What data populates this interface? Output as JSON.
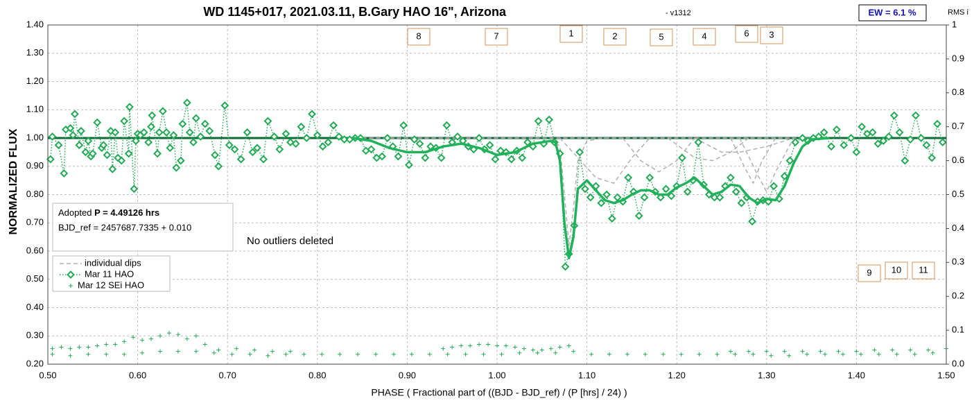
{
  "chart_data": {
    "type": "line",
    "title": "WD 1145+017, 2021.03.11, B.Gary HAO 16\", Arizona",
    "subtitle": "- v1312",
    "ew_label": "EW = 6.1 %",
    "y2_axis_label": "RMS i",
    "y_axis_label": "NORMALIZED FLUX",
    "x_axis_label": "PHASE ( Fractional part of ((BJD - BJD_ref) / (P [hrs] / 24) )",
    "info": {
      "adopted": "Adopted",
      "period": "P = 4.49126 hrs",
      "bjd_ref": "BJD_ref = 2457687.7335 + 0.010"
    },
    "note": "No outliers deleted",
    "dip_labels": [
      "8",
      "7",
      "1",
      "2",
      "5",
      "4",
      "6",
      "3",
      "9",
      "10",
      "11"
    ],
    "grid": true,
    "xlim": [
      0.5,
      1.5
    ],
    "xticks": [
      {
        "value": 0.5,
        "label": "0.50"
      },
      {
        "value": 0.6,
        "label": "0.60"
      },
      {
        "value": 0.7,
        "label": "0.70"
      },
      {
        "value": 0.8,
        "label": "0.80"
      },
      {
        "value": 0.9,
        "label": "0.90"
      },
      {
        "value": 1.0,
        "label": "1.00"
      },
      {
        "value": 1.1,
        "label": "1.10"
      },
      {
        "value": 1.2,
        "label": "1.20"
      },
      {
        "value": 1.3,
        "label": "1.30"
      },
      {
        "value": 1.4,
        "label": "1.40"
      },
      {
        "value": 1.5,
        "label": "1.50"
      }
    ],
    "ylim": [
      0.2,
      1.4
    ],
    "yticks": [
      {
        "value": 0.2,
        "label": "0.20"
      },
      {
        "value": 0.3,
        "label": "0.30"
      },
      {
        "value": 0.4,
        "label": "0.40"
      },
      {
        "value": 0.5,
        "label": "0.50"
      },
      {
        "value": 0.6,
        "label": "0.60"
      },
      {
        "value": 0.7,
        "label": "0.70"
      },
      {
        "value": 0.8,
        "label": "0.80"
      },
      {
        "value": 0.9,
        "label": "0.90"
      },
      {
        "value": 1.0,
        "label": "1.00"
      },
      {
        "value": 1.1,
        "label": "1.10"
      },
      {
        "value": 1.2,
        "label": "1.20"
      },
      {
        "value": 1.3,
        "label": "1.30"
      },
      {
        "value": 1.4,
        "label": "1.40"
      }
    ],
    "y2lim": [
      0,
      1
    ],
    "y2ticks": [
      {
        "value": 0,
        "label": "0.0"
      },
      0.1,
      0.2,
      0.3,
      0.4,
      0.5,
      0.6,
      0.7,
      0.8,
      0.9,
      1
    ],
    "series": [
      {
        "color": "#0b6b32",
        "line": "solid",
        "width": 3,
        "marker": "none",
        "x": [
          0.5,
          1.5
        ],
        "values": [
          1.0,
          1.0
        ]
      },
      {
        "color": "#9a9a9a",
        "line": "dashed",
        "width": 2,
        "marker": "none",
        "x": [
          0.85,
          1.35
        ],
        "values": [
          1.0,
          1.0
        ]
      },
      {
        "name": "individual dips",
        "color": "#b0b0b0",
        "line": "dashed",
        "width": 1.5,
        "marker": "none",
        "x": [
          1.06,
          1.07,
          1.075,
          1.08,
          1.085,
          1.09,
          1.1,
          1.12
        ],
        "values": [
          1.0,
          0.97,
          0.8,
          0.62,
          0.75,
          0.92,
          0.99,
          1.0
        ]
      },
      {
        "color": "#b0b0b0",
        "line": "dashed",
        "width": 1.5,
        "marker": "none",
        "x": [
          1.07,
          1.09,
          1.11,
          1.13,
          1.15,
          1.17
        ],
        "values": [
          1.0,
          0.93,
          0.86,
          0.84,
          0.93,
          1.0
        ]
      },
      {
        "color": "#b0b0b0",
        "line": "dashed",
        "width": 1.5,
        "marker": "none",
        "x": [
          1.14,
          1.16,
          1.18,
          1.2,
          1.22
        ],
        "values": [
          1.0,
          0.92,
          0.88,
          0.92,
          1.0
        ]
      },
      {
        "color": "#b0b0b0",
        "line": "dashed",
        "width": 1.5,
        "marker": "none",
        "x": [
          1.19,
          1.22,
          1.24,
          1.26,
          1.28
        ],
        "values": [
          1.0,
          0.93,
          0.92,
          0.95,
          1.0
        ]
      },
      {
        "color": "#b0b0b0",
        "line": "dashed",
        "width": 1.5,
        "marker": "none",
        "x": [
          1.22,
          1.25,
          1.27,
          1.3,
          1.33
        ],
        "values": [
          1.0,
          0.95,
          0.95,
          0.97,
          1.0
        ]
      },
      {
        "color": "#b0b0b0",
        "line": "dashed",
        "width": 1.5,
        "marker": "none",
        "x": [
          1.26,
          1.275,
          1.285,
          1.295,
          1.31
        ],
        "values": [
          1.0,
          0.9,
          0.84,
          0.92,
          1.0
        ]
      },
      {
        "color": "#b0b0b0",
        "line": "dashed",
        "width": 1.5,
        "marker": "none",
        "x": [
          1.27,
          1.29,
          1.3,
          1.31,
          1.33
        ],
        "values": [
          1.0,
          0.87,
          0.81,
          0.88,
          1.0
        ]
      },
      {
        "name": "Mar 11 HAO",
        "color": "#22aa55",
        "line": "dotted",
        "width": 1.5,
        "marker": "diamond",
        "x": [
          0.503,
          0.505,
          0.512,
          0.518,
          0.52,
          0.525,
          0.528,
          0.53,
          0.535,
          0.537,
          0.542,
          0.545,
          0.548,
          0.55,
          0.555,
          0.56,
          0.562,
          0.566,
          0.57,
          0.572,
          0.575,
          0.578,
          0.582,
          0.585,
          0.59,
          0.591,
          0.596,
          0.598,
          0.6,
          0.603,
          0.607,
          0.612,
          0.615,
          0.616,
          0.622,
          0.624,
          0.628,
          0.632,
          0.636,
          0.64,
          0.643,
          0.648,
          0.65,
          0.655,
          0.658,
          0.662,
          0.665,
          0.67,
          0.675,
          0.68,
          0.686,
          0.69,
          0.697,
          0.702,
          0.708,
          0.715,
          0.722,
          0.728,
          0.733,
          0.74,
          0.745,
          0.752,
          0.758,
          0.765,
          0.77,
          0.776,
          0.782,
          0.788,
          0.794,
          0.8,
          0.806,
          0.812,
          0.818,
          0.824,
          0.83,
          0.836,
          0.842,
          0.848,
          0.854,
          0.86,
          0.866,
          0.872,
          0.878,
          0.884,
          0.89,
          0.896,
          0.902,
          0.908,
          0.914,
          0.92,
          0.926,
          0.932,
          0.938,
          0.944,
          0.95,
          0.956,
          0.962,
          0.968,
          0.974,
          0.98,
          0.986,
          0.992,
          0.998,
          1.004,
          1.01,
          1.016,
          1.022,
          1.028,
          1.034,
          1.04,
          1.046,
          1.052,
          1.058,
          1.064,
          1.07,
          1.076,
          1.08,
          1.086,
          1.092,
          1.098,
          1.104,
          1.11,
          1.116,
          1.122,
          1.128,
          1.134,
          1.14,
          1.146,
          1.152,
          1.158,
          1.164,
          1.17,
          1.176,
          1.182,
          1.188,
          1.194,
          1.2,
          1.206,
          1.212,
          1.218,
          1.224,
          1.23,
          1.236,
          1.242,
          1.248,
          1.254,
          1.26,
          1.266,
          1.272,
          1.278,
          1.284,
          1.29,
          1.296,
          1.302,
          1.308,
          1.314,
          1.32,
          1.326,
          1.332,
          1.34,
          1.346,
          1.352,
          1.358,
          1.364,
          1.372,
          1.378,
          1.386,
          1.394,
          1.4,
          1.406,
          1.412,
          1.418,
          1.424,
          1.43,
          1.436,
          1.442,
          1.448,
          1.454,
          1.46,
          1.466,
          1.472,
          1.478,
          1.484,
          1.49,
          1.496
        ],
        "values": [
          0.925,
          1.005,
          0.975,
          0.875,
          1.03,
          1.035,
          1.01,
          1.085,
          0.975,
          1.025,
          0.95,
          0.99,
          0.935,
          0.945,
          1.055,
          0.965,
          0.975,
          0.94,
          1.025,
          0.89,
          1.02,
          0.93,
          0.92,
          1.06,
          0.945,
          1.11,
          0.82,
          0.99,
          1.015,
          1.01,
          1.02,
          0.985,
          1.04,
          1.08,
          0.945,
          1.02,
          1.095,
          1.02,
          0.965,
          1.01,
          0.895,
          0.92,
          1.05,
          1.125,
          1.02,
          0.985,
          1.07,
          1.005,
          1.05,
          1.025,
          0.94,
          0.9,
          1.115,
          0.975,
          0.96,
          0.925,
          1.02,
          0.95,
          0.965,
          0.925,
          1.06,
          1.005,
          0.96,
          1.015,
          0.985,
          0.98,
          1.04,
          1.0,
          1.085,
          1.01,
          0.97,
          0.985,
          1.045,
          1.005,
          0.995,
          0.995,
          1.0,
          1.0,
          0.955,
          0.96,
          0.93,
          0.935,
          1.0,
          0.97,
          0.935,
          1.045,
          0.905,
          0.995,
          0.98,
          0.93,
          0.97,
          0.965,
          0.93,
          1.045,
          0.985,
          1.005,
          0.99,
          0.97,
          0.96,
          1.0,
          0.96,
          0.975,
          0.925,
          0.955,
          0.95,
          0.925,
          0.955,
          0.93,
          0.985,
          0.97,
          1.06,
          0.98,
          1.065,
          0.985,
          0.945,
          0.545,
          0.59,
          0.69,
          0.95,
          0.82,
          0.79,
          0.83,
          0.77,
          0.8,
          0.715,
          0.79,
          0.775,
          0.86,
          0.81,
          0.725,
          0.79,
          0.86,
          0.81,
          0.79,
          0.82,
          0.795,
          0.83,
          0.93,
          0.81,
          0.85,
          0.985,
          0.835,
          0.8,
          0.79,
          0.79,
          0.83,
          0.86,
          0.81,
          0.77,
          0.79,
          0.705,
          0.775,
          0.78,
          0.775,
          0.83,
          0.785,
          0.865,
          0.92,
          0.985,
          1.0,
          0.99,
          1.0,
          1.005,
          1.02,
          0.97,
          1.03,
          0.975,
          1.0,
          0.95,
          1.04,
          1.015,
          1.02,
          0.98,
          0.99,
          1.005,
          1.08,
          1.02,
          0.92,
          0.995,
          1.08,
          1.0,
          0.975,
          0.93,
          1.05,
          0.985
        ]
      },
      {
        "color": "#1fb25a",
        "line": "solid",
        "width": 3.5,
        "marker": "none",
        "x": [
          0.84,
          0.86,
          0.88,
          0.9,
          0.92,
          0.94,
          0.96,
          0.98,
          1.0,
          1.02,
          1.04,
          1.06,
          1.065,
          1.07,
          1.075,
          1.08,
          1.085,
          1.09,
          1.1,
          1.11,
          1.12,
          1.13,
          1.14,
          1.15,
          1.16,
          1.17,
          1.18,
          1.19,
          1.2,
          1.21,
          1.22,
          1.23,
          1.24,
          1.25,
          1.26,
          1.27,
          1.28,
          1.29,
          1.3,
          1.31,
          1.32,
          1.33,
          1.34,
          1.35,
          1.37
        ],
        "values": [
          1.0,
          0.99,
          0.965,
          0.95,
          0.95,
          0.97,
          0.98,
          0.965,
          0.94,
          0.95,
          0.98,
          0.99,
          0.985,
          0.92,
          0.7,
          0.575,
          0.65,
          0.82,
          0.85,
          0.815,
          0.78,
          0.77,
          0.78,
          0.8,
          0.815,
          0.815,
          0.8,
          0.8,
          0.825,
          0.84,
          0.86,
          0.83,
          0.8,
          0.81,
          0.835,
          0.83,
          0.79,
          0.77,
          0.785,
          0.78,
          0.83,
          0.91,
          0.97,
          0.995,
          1.0
        ]
      },
      {
        "name": "Mar 12 SEi HAO",
        "color": "#22aa55",
        "line": "none",
        "width": 1,
        "marker": "plus",
        "x": [
          0.505,
          0.525,
          0.545,
          0.565,
          0.585,
          0.605,
          0.625,
          0.645,
          0.665,
          0.685,
          0.705,
          0.725,
          0.745,
          0.765,
          0.785,
          0.805,
          0.825,
          0.845,
          0.865,
          0.885,
          0.905,
          0.925,
          0.945,
          0.965,
          0.985,
          1.005,
          1.025,
          1.045,
          1.065,
          1.085,
          1.105,
          1.125,
          1.145,
          1.165,
          1.185,
          1.205,
          1.225,
          1.245,
          1.265,
          1.285,
          1.305,
          1.325,
          1.345,
          1.365,
          1.385,
          1.405,
          1.425,
          1.445,
          1.465,
          1.485,
          0.505,
          0.515,
          0.525,
          0.535,
          0.545,
          0.555,
          0.565,
          0.575,
          0.585,
          0.595,
          0.605,
          0.615,
          0.625,
          0.635,
          0.645,
          0.655,
          0.665,
          0.675,
          0.69,
          0.71,
          0.73,
          0.75,
          0.77,
          0.94,
          0.95,
          0.96,
          0.97,
          0.98,
          0.99,
          1.0,
          1.01,
          1.02,
          1.03,
          1.04,
          1.05,
          1.06,
          1.07,
          1.08,
          1.26,
          1.28,
          1.3,
          1.32,
          1.34,
          1.36,
          1.38,
          1.4,
          1.42,
          1.44,
          1.46,
          1.48,
          1.5
        ],
        "values": [
          0.235,
          0.23,
          0.235,
          0.235,
          0.235,
          0.24,
          0.245,
          0.245,
          0.245,
          0.24,
          0.235,
          0.235,
          0.23,
          0.235,
          0.235,
          0.235,
          0.235,
          0.235,
          0.235,
          0.235,
          0.235,
          0.235,
          0.235,
          0.235,
          0.235,
          0.235,
          0.24,
          0.24,
          0.24,
          0.245,
          0.235,
          0.235,
          0.235,
          0.235,
          0.235,
          0.235,
          0.235,
          0.235,
          0.235,
          0.235,
          0.23,
          0.23,
          0.235,
          0.235,
          0.235,
          0.235,
          0.235,
          0.235,
          0.235,
          0.24,
          0.255,
          0.26,
          0.255,
          0.26,
          0.26,
          0.265,
          0.27,
          0.27,
          0.28,
          0.295,
          0.285,
          0.29,
          0.3,
          0.31,
          0.305,
          0.29,
          0.3,
          0.27,
          0.25,
          0.255,
          0.25,
          0.245,
          0.245,
          0.255,
          0.26,
          0.265,
          0.265,
          0.27,
          0.27,
          0.265,
          0.265,
          0.26,
          0.255,
          0.25,
          0.25,
          0.255,
          0.26,
          0.265,
          0.245,
          0.245,
          0.245,
          0.245,
          0.245,
          0.245,
          0.245,
          0.245,
          0.25,
          0.25,
          0.25,
          0.25,
          0.255
        ]
      }
    ]
  }
}
